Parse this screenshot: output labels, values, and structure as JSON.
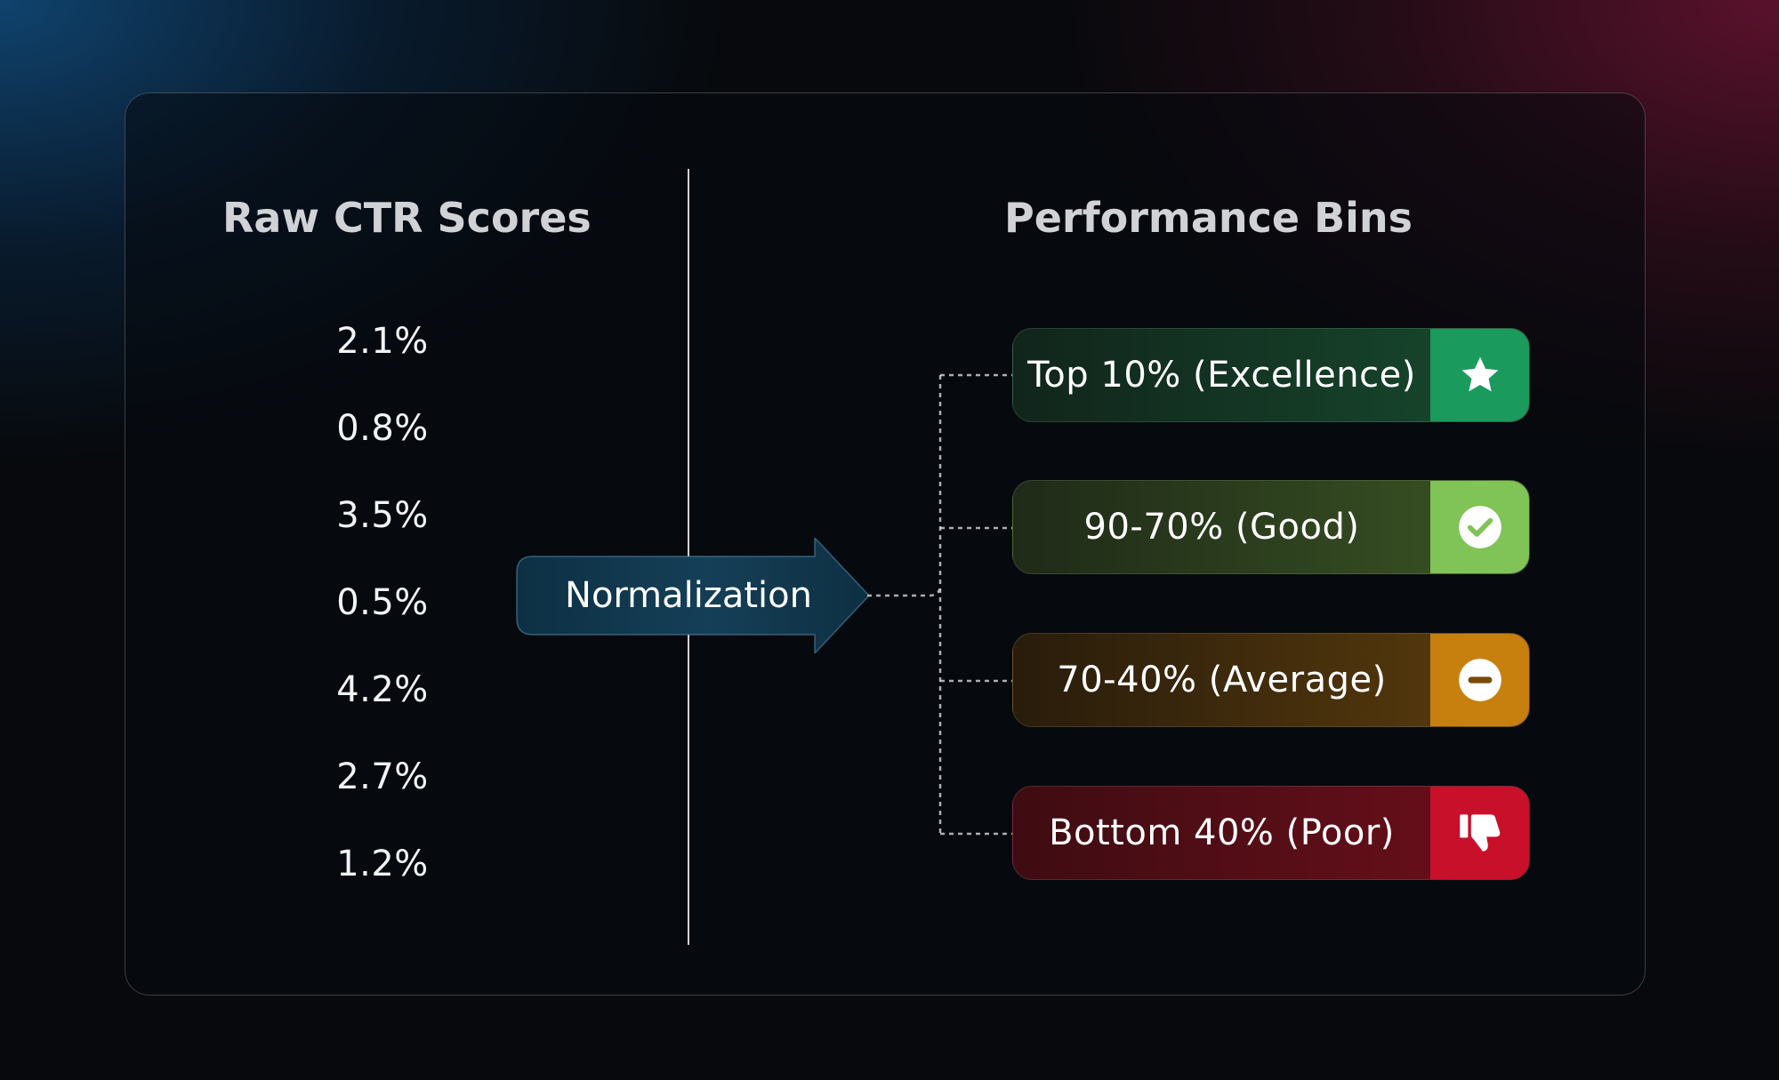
{
  "left_heading": "Raw CTR Scores",
  "right_heading": "Performance Bins",
  "scores": [
    "2.1%",
    "0.8%",
    "3.5%",
    "0.5%",
    "4.2%",
    "2.7%",
    "1.2%"
  ],
  "process_label": "Normalization",
  "bins": [
    {
      "label": "Top 10% (Excellence)",
      "icon": "star-icon",
      "color": "#1a9a5c"
    },
    {
      "label": "90-70% (Good)",
      "icon": "check-circle-icon",
      "color": "#80c356"
    },
    {
      "label": "70-40% (Average)",
      "icon": "minus-circle-icon",
      "color": "#c7800d"
    },
    {
      "label": "Bottom 40% (Poor)",
      "icon": "thumbs-down-icon",
      "color": "#c8102b"
    }
  ]
}
